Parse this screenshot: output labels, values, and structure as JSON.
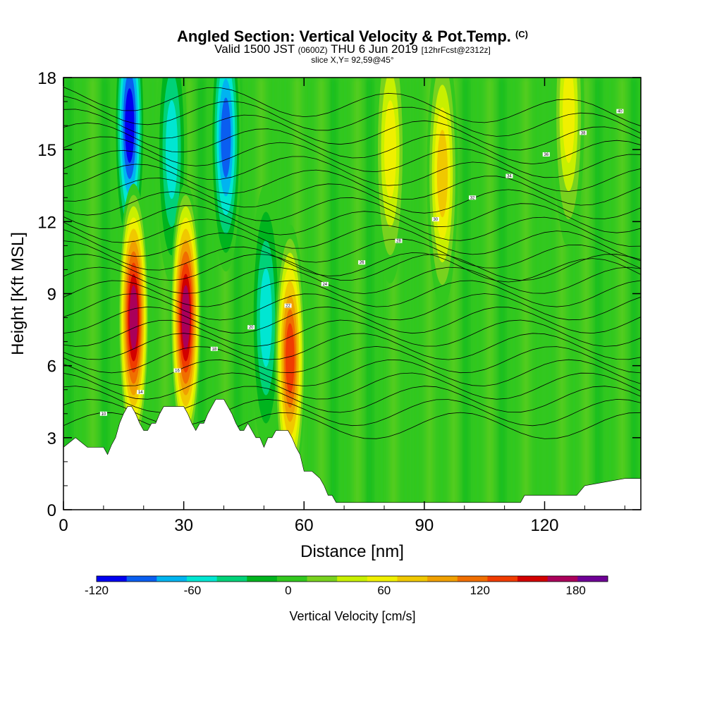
{
  "header": {
    "title": "Angled Section: Vertical Velocity & Pot.Temp.",
    "title_unit": "(C)",
    "valid_prefix": "Valid 1500 JST",
    "valid_zulu": "(0600Z)",
    "valid_date": "THU 6 Jun 2019",
    "forecast": "[12hrFcst@2312z]",
    "slice": "slice X,Y= 92,59@45°"
  },
  "chart_data": {
    "type": "heatmap",
    "title": "Angled Section: Vertical Velocity & Pot.Temp.",
    "xlabel": "Distance [nm]",
    "ylabel": "Height [Kft MSL]",
    "xlim": [
      0,
      144
    ],
    "ylim": [
      0,
      18
    ],
    "x_ticks": [
      "0",
      "30",
      "60",
      "90",
      "120"
    ],
    "x_tick_values": [
      0,
      30,
      60,
      90,
      120
    ],
    "y_ticks": [
      "0",
      "3",
      "6",
      "9",
      "12",
      "15",
      "18"
    ],
    "y_tick_values": [
      0,
      3,
      6,
      9,
      12,
      15,
      18
    ],
    "colorbar": {
      "label": "Vertical Velocity [cm/s]",
      "tick_labels": [
        "-120",
        "-60",
        "0",
        "60",
        "120",
        "180"
      ],
      "tick_values": [
        -120,
        -60,
        0,
        60,
        120,
        180
      ],
      "range": [
        -120,
        200
      ],
      "colors": [
        "#0000f0",
        "#0a5ef0",
        "#00b4f0",
        "#00e6d2",
        "#00d278",
        "#00b41e",
        "#32c81e",
        "#78d21e",
        "#c8f000",
        "#f0f000",
        "#f0c800",
        "#f0a000",
        "#f06e00",
        "#f03c00",
        "#d20000",
        "#aa005a",
        "#6e0096"
      ]
    },
    "topography": {
      "x": [
        0,
        3,
        6,
        8,
        10,
        11,
        12,
        13,
        14,
        15,
        16,
        17,
        18,
        19,
        20,
        21,
        22,
        23,
        24,
        25,
        26,
        27,
        28,
        29,
        30,
        31,
        32,
        33,
        34,
        35,
        36,
        37,
        38,
        39,
        40,
        41,
        42,
        43,
        44,
        45,
        46,
        47,
        48,
        49,
        50,
        51,
        52,
        53,
        54,
        55,
        56,
        57,
        58,
        59,
        60,
        62,
        64,
        65,
        66,
        67,
        68,
        69,
        70,
        72,
        80,
        100,
        110,
        114,
        115,
        118,
        120,
        125,
        128,
        130,
        140,
        144
      ],
      "y": [
        2.6,
        3.0,
        2.6,
        2.6,
        2.6,
        2.3,
        2.7,
        3.0,
        3.6,
        4.0,
        4.3,
        4.3,
        4.0,
        3.6,
        3.3,
        3.3,
        3.6,
        3.6,
        4.0,
        4.3,
        4.3,
        4.3,
        4.3,
        4.3,
        4.3,
        4.0,
        3.6,
        3.3,
        3.6,
        3.6,
        4.0,
        4.3,
        4.6,
        4.6,
        4.6,
        4.3,
        4.0,
        3.6,
        3.3,
        3.3,
        3.6,
        3.3,
        3.0,
        3.0,
        2.6,
        3.0,
        3.0,
        3.3,
        3.3,
        3.3,
        3.3,
        3.0,
        2.6,
        2.3,
        1.6,
        1.6,
        1.3,
        1.0,
        0.6,
        0.6,
        0.3,
        0.3,
        0.3,
        0.3,
        0.3,
        0.3,
        0.3,
        0.3,
        0.6,
        0.6,
        0.6,
        0.6,
        0.6,
        1.0,
        1.3,
        1.3
      ]
    },
    "updrafts": [
      {
        "x": 17.5,
        "y": 8.0,
        "peak": 180
      },
      {
        "x": 30.5,
        "y": 8.0,
        "peak": 180
      },
      {
        "x": 56.5,
        "y": 6.3,
        "peak": 140
      },
      {
        "x": 81.5,
        "y": 15.0,
        "peak": 60
      },
      {
        "x": 94.5,
        "y": 14.0,
        "peak": 80
      },
      {
        "x": 126,
        "y": 16.5,
        "peak": 60
      }
    ],
    "downdrafts": [
      {
        "x": 16.5,
        "y": 16.0,
        "peak": -120
      },
      {
        "x": 27,
        "y": 15.0,
        "peak": -60
      },
      {
        "x": 40.5,
        "y": 15.5,
        "peak": -100
      },
      {
        "x": 50.5,
        "y": 8.0,
        "peak": -60
      }
    ],
    "theta_contour_labels": [
      "10",
      "14",
      "16",
      "18",
      "20",
      "22",
      "24",
      "26",
      "28",
      "30",
      "32",
      "34",
      "36",
      "38",
      "40"
    ]
  }
}
